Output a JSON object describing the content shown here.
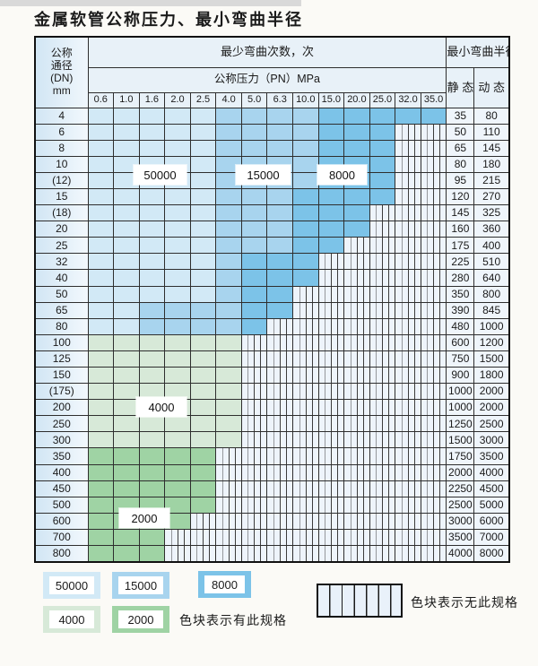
{
  "title": "金属软管公称压力、最小弯曲半径",
  "table": {
    "header": {
      "dn_label_lines": [
        "公称",
        "通径",
        "(DN)",
        "mm"
      ],
      "bend_cycles_label": "最少弯曲次数，次",
      "pressure_label": "公称压力（PN）MPa",
      "radius_label": "最小弯曲半径",
      "static_label": "静 态",
      "dynamic_label": "动 态",
      "pressure_columns": [
        "0.6",
        "1.0",
        "1.6",
        "2.0",
        "2.5",
        "4.0",
        "5.0",
        "6.3",
        "10.0",
        "15.0",
        "20.0",
        "25.0",
        "32.0",
        "35.0"
      ]
    },
    "rows": [
      {
        "dn": "4",
        "cells": [
          "50000",
          "50000",
          "50000",
          "50000",
          "50000",
          "15000",
          "15000",
          "15000",
          "15000",
          "8000",
          "8000",
          "8000",
          "8000",
          "8000"
        ],
        "static": "35",
        "dynamic": "80"
      },
      {
        "dn": "6",
        "cells": [
          "50000",
          "50000",
          "50000",
          "50000",
          "50000",
          "15000",
          "15000",
          "15000",
          "15000",
          "8000",
          "8000",
          "8000",
          "",
          ""
        ],
        "static": "50",
        "dynamic": "110"
      },
      {
        "dn": "8",
        "cells": [
          "50000",
          "50000",
          "50000",
          "50000",
          "50000",
          "15000",
          "15000",
          "15000",
          "15000",
          "8000",
          "8000",
          "8000",
          "",
          ""
        ],
        "static": "65",
        "dynamic": "145"
      },
      {
        "dn": "10",
        "cells": [
          "50000",
          "50000",
          "50000",
          "50000",
          "50000",
          "15000",
          "15000",
          "15000",
          "15000",
          "8000",
          "8000",
          "8000",
          "",
          ""
        ],
        "static": "80",
        "dynamic": "180"
      },
      {
        "dn": "(12)",
        "cells": [
          "50000",
          "50000",
          "50000",
          "50000",
          "50000",
          "15000",
          "15000",
          "15000",
          "15000",
          "8000",
          "8000",
          "8000",
          "",
          ""
        ],
        "static": "95",
        "dynamic": "215"
      },
      {
        "dn": "15",
        "cells": [
          "50000",
          "50000",
          "50000",
          "50000",
          "50000",
          "15000",
          "15000",
          "15000",
          "8000",
          "8000",
          "8000",
          "8000",
          "",
          ""
        ],
        "static": "120",
        "dynamic": "270"
      },
      {
        "dn": "(18)",
        "cells": [
          "50000",
          "50000",
          "50000",
          "50000",
          "50000",
          "15000",
          "15000",
          "15000",
          "8000",
          "8000",
          "8000",
          "",
          "",
          ""
        ],
        "static": "145",
        "dynamic": "325"
      },
      {
        "dn": "20",
        "cells": [
          "50000",
          "50000",
          "50000",
          "50000",
          "50000",
          "15000",
          "15000",
          "15000",
          "8000",
          "8000",
          "8000",
          "",
          "",
          ""
        ],
        "static": "160",
        "dynamic": "360"
      },
      {
        "dn": "25",
        "cells": [
          "50000",
          "50000",
          "50000",
          "50000",
          "50000",
          "15000",
          "15000",
          "15000",
          "8000",
          "8000",
          "",
          "",
          "",
          ""
        ],
        "static": "175",
        "dynamic": "400"
      },
      {
        "dn": "32",
        "cells": [
          "50000",
          "50000",
          "50000",
          "50000",
          "50000",
          "15000",
          "8000",
          "8000",
          "8000",
          "",
          "",
          "",
          "",
          ""
        ],
        "static": "225",
        "dynamic": "510"
      },
      {
        "dn": "40",
        "cells": [
          "50000",
          "50000",
          "50000",
          "50000",
          "50000",
          "15000",
          "8000",
          "8000",
          "8000",
          "",
          "",
          "",
          "",
          ""
        ],
        "static": "280",
        "dynamic": "640"
      },
      {
        "dn": "50",
        "cells": [
          "50000",
          "50000",
          "50000",
          "50000",
          "50000",
          "15000",
          "8000",
          "8000",
          "",
          "",
          "",
          "",
          "",
          ""
        ],
        "static": "350",
        "dynamic": "800"
      },
      {
        "dn": "65",
        "cells": [
          "50000",
          "50000",
          "15000",
          "15000",
          "15000",
          "15000",
          "8000",
          "8000",
          "",
          "",
          "",
          "",
          "",
          ""
        ],
        "static": "390",
        "dynamic": "845"
      },
      {
        "dn": "80",
        "cells": [
          "50000",
          "50000",
          "15000",
          "15000",
          "15000",
          "15000",
          "8000",
          "",
          "",
          "",
          "",
          "",
          "",
          ""
        ],
        "static": "480",
        "dynamic": "1000"
      },
      {
        "dn": "100",
        "cells": [
          "4000",
          "4000",
          "4000",
          "4000",
          "4000",
          "4000",
          "",
          "",
          "",
          "",
          "",
          "",
          "",
          ""
        ],
        "static": "600",
        "dynamic": "1200"
      },
      {
        "dn": "125",
        "cells": [
          "4000",
          "4000",
          "4000",
          "4000",
          "4000",
          "4000",
          "",
          "",
          "",
          "",
          "",
          "",
          "",
          ""
        ],
        "static": "750",
        "dynamic": "1500"
      },
      {
        "dn": "150",
        "cells": [
          "4000",
          "4000",
          "4000",
          "4000",
          "4000",
          "4000",
          "",
          "",
          "",
          "",
          "",
          "",
          "",
          ""
        ],
        "static": "900",
        "dynamic": "1800"
      },
      {
        "dn": "(175)",
        "cells": [
          "4000",
          "4000",
          "4000",
          "4000",
          "4000",
          "4000",
          "",
          "",
          "",
          "",
          "",
          "",
          "",
          ""
        ],
        "static": "1000",
        "dynamic": "2000"
      },
      {
        "dn": "200",
        "cells": [
          "4000",
          "4000",
          "4000",
          "4000",
          "4000",
          "4000",
          "",
          "",
          "",
          "",
          "",
          "",
          "",
          ""
        ],
        "static": "1000",
        "dynamic": "2000"
      },
      {
        "dn": "250",
        "cells": [
          "4000",
          "4000",
          "4000",
          "4000",
          "4000",
          "4000",
          "",
          "",
          "",
          "",
          "",
          "",
          "",
          ""
        ],
        "static": "1250",
        "dynamic": "2500"
      },
      {
        "dn": "300",
        "cells": [
          "4000",
          "4000",
          "4000",
          "4000",
          "4000",
          "4000",
          "",
          "",
          "",
          "",
          "",
          "",
          "",
          ""
        ],
        "static": "1500",
        "dynamic": "3000"
      },
      {
        "dn": "350",
        "cells": [
          "2000",
          "2000",
          "2000",
          "2000",
          "2000",
          "",
          "",
          "",
          "",
          "",
          "",
          "",
          "",
          ""
        ],
        "static": "1750",
        "dynamic": "3500"
      },
      {
        "dn": "400",
        "cells": [
          "2000",
          "2000",
          "2000",
          "2000",
          "2000",
          "",
          "",
          "",
          "",
          "",
          "",
          "",
          "",
          ""
        ],
        "static": "2000",
        "dynamic": "4000"
      },
      {
        "dn": "450",
        "cells": [
          "2000",
          "2000",
          "2000",
          "2000",
          "2000",
          "",
          "",
          "",
          "",
          "",
          "",
          "",
          "",
          ""
        ],
        "static": "2250",
        "dynamic": "4500"
      },
      {
        "dn": "500",
        "cells": [
          "2000",
          "2000",
          "2000",
          "2000",
          "2000",
          "",
          "",
          "",
          "",
          "",
          "",
          "",
          "",
          ""
        ],
        "static": "2500",
        "dynamic": "5000"
      },
      {
        "dn": "600",
        "cells": [
          "2000",
          "2000",
          "2000",
          "2000",
          "",
          "",
          "",
          "",
          "",
          "",
          "",
          "",
          "",
          ""
        ],
        "static": "3000",
        "dynamic": "6000"
      },
      {
        "dn": "700",
        "cells": [
          "2000",
          "2000",
          "2000",
          "",
          "",
          "",
          "",
          "",
          "",
          "",
          "",
          "",
          "",
          ""
        ],
        "static": "3500",
        "dynamic": "7000"
      },
      {
        "dn": "800",
        "cells": [
          "2000",
          "2000",
          "2000",
          "",
          "",
          "",
          "",
          "",
          "",
          "",
          "",
          "",
          "",
          ""
        ],
        "static": "4000",
        "dynamic": "8000"
      }
    ]
  },
  "region_labels": [
    {
      "id": "50000",
      "text": "50000"
    },
    {
      "id": "15000",
      "text": "15000"
    },
    {
      "id": "8000",
      "text": "8000"
    },
    {
      "id": "4000",
      "text": "4000"
    },
    {
      "id": "2000",
      "text": "2000"
    }
  ],
  "legend": {
    "has_spec_items": [
      {
        "label": "50000",
        "color": "blue_50000"
      },
      {
        "label": "15000",
        "color": "blue_15000"
      },
      {
        "label": "8000",
        "color": "blue_8000"
      },
      {
        "label": "4000",
        "color": "green_4000"
      },
      {
        "label": "2000",
        "color": "green_2000"
      }
    ],
    "has_spec_note": "色块表示有此规格",
    "no_spec_note": "色块表示无此规格"
  },
  "colors": {
    "blue_50000": "#d2e9f6",
    "blue_15000": "#a8d4ee",
    "blue_8000": "#7cc3e8",
    "green_4000": "#d7e9d8",
    "green_2000": "#9fd3a4"
  }
}
